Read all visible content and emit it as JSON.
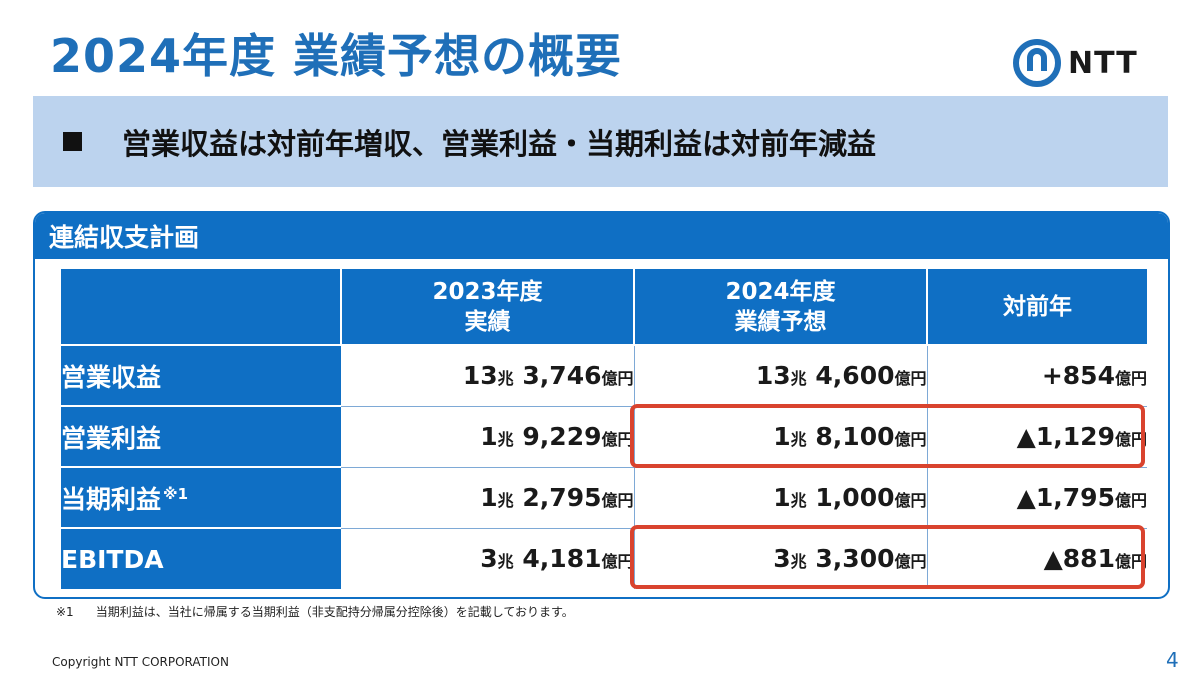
{
  "title": "2024年度 業績予想の概要",
  "logo": {
    "text": "NTT",
    "icon": "ntt-loop-logo-icon",
    "color": "#1f6fb8"
  },
  "banner": {
    "text": "営業収益は対前年増収、営業利益・当期利益は対前年減益"
  },
  "panel": {
    "title": "連結収支計画",
    "headers": {
      "col1": {
        "line1": "2023年度",
        "line2": "実績"
      },
      "col2": {
        "line1": "2024年度",
        "line2": "業績予想"
      },
      "col3": {
        "line1": "対前年"
      }
    },
    "rows": [
      {
        "label": "営業収益",
        "note": "",
        "c1": {
          "cho": "13",
          "cho_unit": "兆",
          "num": "3,746",
          "unit": "億円"
        },
        "c2": {
          "cho": "13",
          "cho_unit": "兆",
          "num": "4,600",
          "unit": "億円"
        },
        "c3": {
          "num": "+854",
          "unit": "億円"
        }
      },
      {
        "label": "営業利益",
        "note": "",
        "c1": {
          "cho": "1",
          "cho_unit": "兆",
          "num": "9,229",
          "unit": "億円"
        },
        "c2": {
          "cho": "1",
          "cho_unit": "兆",
          "num": "8,100",
          "unit": "億円"
        },
        "c3": {
          "num": "▲1,129",
          "unit": "億円"
        }
      },
      {
        "label": "当期利益",
        "note": "※1",
        "c1": {
          "cho": "1",
          "cho_unit": "兆",
          "num": "2,795",
          "unit": "億円"
        },
        "c2": {
          "cho": "1",
          "cho_unit": "兆",
          "num": "1,000",
          "unit": "億円"
        },
        "c3": {
          "num": "▲1,795",
          "unit": "億円"
        }
      },
      {
        "label": "EBITDA",
        "note": "",
        "c1": {
          "cho": "3",
          "cho_unit": "兆",
          "num": "4,181",
          "unit": "億円"
        },
        "c2": {
          "cho": "3",
          "cho_unit": "兆",
          "num": "3,300",
          "unit": "億円"
        },
        "c3": {
          "num": "▲881",
          "unit": "億円"
        }
      }
    ]
  },
  "highlight_color": "#d9432e",
  "accent_color": "#0f6fc4",
  "footnote": {
    "mark": "※1",
    "text": "当期利益は、当社に帰属する当期利益（非支配持分帰属分控除後）を記載しております。"
  },
  "copyright": "Copyright NTT CORPORATION",
  "page_number": "4"
}
